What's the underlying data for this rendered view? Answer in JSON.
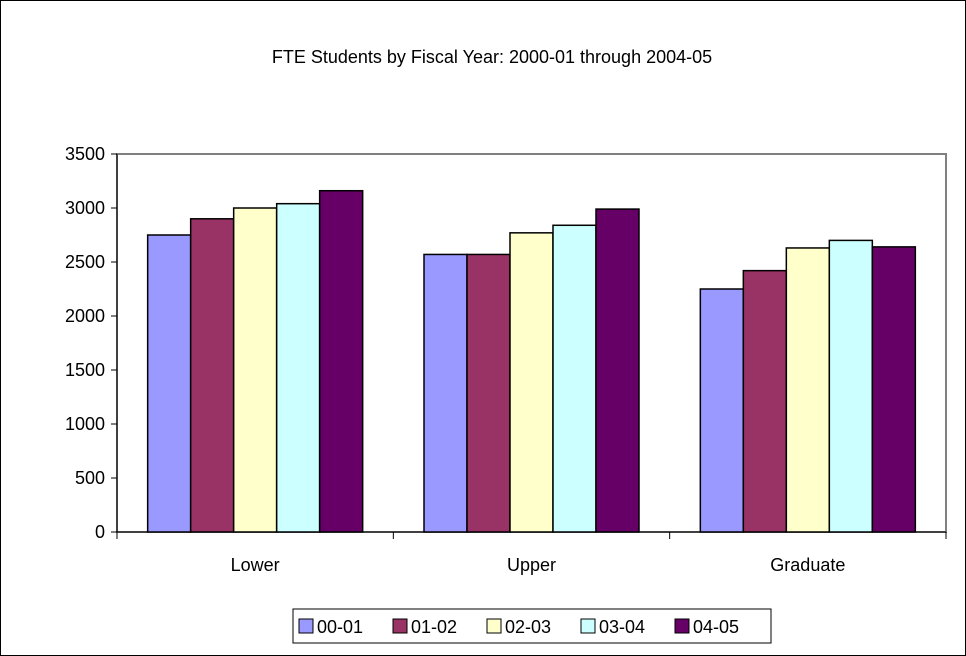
{
  "chart_data": {
    "type": "bar",
    "title": "FTE Students by Fiscal Year:  2000-01 through 2004-05",
    "xlabel": "",
    "ylabel": "",
    "categories": [
      "Lower",
      "Upper",
      "Graduate"
    ],
    "series": [
      {
        "name": "00-01",
        "color": "#9999ff",
        "values": [
          2750,
          2570,
          2250
        ]
      },
      {
        "name": "01-02",
        "color": "#993366",
        "values": [
          2900,
          2570,
          2420
        ]
      },
      {
        "name": "02-03",
        "color": "#ffffcc",
        "values": [
          3000,
          2770,
          2630
        ]
      },
      {
        "name": "03-04",
        "color": "#ccffff",
        "values": [
          3040,
          2840,
          2700
        ]
      },
      {
        "name": "04-05",
        "color": "#660066",
        "values": [
          3160,
          2990,
          2640
        ]
      }
    ],
    "ylim": [
      0,
      3500
    ],
    "yticks": [
      0,
      500,
      1000,
      1500,
      2000,
      2500,
      3000,
      3500
    ],
    "grid": false,
    "legend_position": "bottom",
    "plot_border_color": "#808080"
  }
}
